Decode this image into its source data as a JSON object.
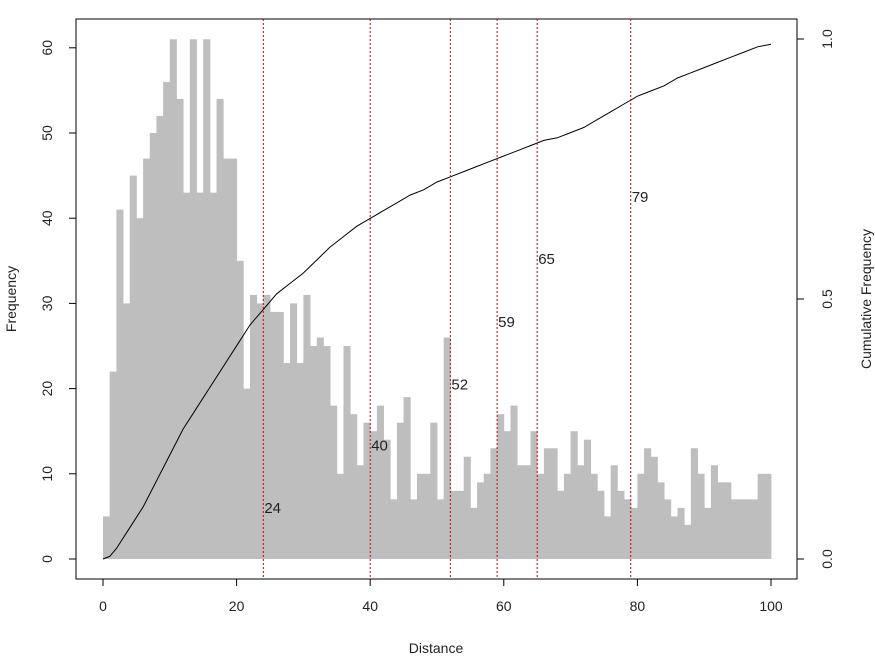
{
  "chart_data": {
    "type": "bar",
    "title": "",
    "xlabel": "Distance",
    "ylabel": "Frequency",
    "y2label": "Cumulative Frequency",
    "xlim": [
      0,
      100
    ],
    "ylim": [
      0,
      64
    ],
    "y2lim": [
      0,
      1.0
    ],
    "x_ticks": [
      0,
      20,
      40,
      60,
      80,
      100
    ],
    "y_ticks": [
      0,
      10,
      20,
      30,
      40,
      50,
      60
    ],
    "y2_ticks": [
      "0.0",
      "0.5",
      "1.0"
    ],
    "y2_tick_values": [
      0,
      0.5,
      1.0
    ],
    "bin_width": 1,
    "bins_start": 0,
    "frequencies": [
      5,
      22,
      41,
      30,
      45,
      40,
      47,
      50,
      52,
      56,
      61,
      54,
      43,
      61,
      43,
      61,
      43,
      54,
      47,
      47,
      35,
      20,
      31,
      30,
      31,
      29,
      29,
      23,
      30,
      23,
      31,
      25,
      26,
      25,
      18,
      10,
      25,
      17,
      11,
      16,
      15,
      18,
      14,
      7,
      16,
      19,
      7,
      10,
      10,
      16,
      7,
      26,
      8,
      8,
      12,
      6,
      9,
      10,
      13,
      17,
      15,
      18,
      11,
      11,
      15,
      10,
      13,
      13,
      8,
      10,
      15,
      11,
      14,
      10,
      8,
      5,
      11,
      8,
      7,
      6,
      10,
      13,
      12,
      9,
      7,
      5,
      6,
      4,
      13,
      10,
      6,
      11,
      9,
      9,
      7,
      7,
      7,
      7,
      10,
      10
    ],
    "bar_color": "#bebebe",
    "cumulative_curve": {
      "color": "#000000",
      "x": [
        0,
        1,
        2,
        4,
        6,
        8,
        10,
        12,
        14,
        16,
        18,
        20,
        22,
        24,
        26,
        28,
        30,
        32,
        34,
        36,
        38,
        40,
        42,
        44,
        46,
        48,
        50,
        52,
        54,
        56,
        58,
        60,
        62,
        64,
        66,
        68,
        70,
        72,
        74,
        76,
        78,
        80,
        82,
        84,
        86,
        88,
        90,
        92,
        94,
        96,
        98,
        100
      ],
      "y": [
        0,
        0.005,
        0.02,
        0.06,
        0.1,
        0.15,
        0.2,
        0.25,
        0.29,
        0.33,
        0.37,
        0.41,
        0.45,
        0.48,
        0.51,
        0.53,
        0.55,
        0.575,
        0.6,
        0.62,
        0.64,
        0.655,
        0.67,
        0.685,
        0.7,
        0.71,
        0.725,
        0.735,
        0.745,
        0.755,
        0.765,
        0.775,
        0.785,
        0.795,
        0.805,
        0.81,
        0.82,
        0.83,
        0.845,
        0.86,
        0.875,
        0.89,
        0.9,
        0.91,
        0.925,
        0.935,
        0.945,
        0.955,
        0.965,
        0.975,
        0.985,
        0.99
      ]
    },
    "reference_lines": [
      {
        "x": 24,
        "label": "24",
        "label_y": 6
      },
      {
        "x": 40,
        "label": "40",
        "label_y": 13.3
      },
      {
        "x": 52,
        "label": "52",
        "label_y": 20.5
      },
      {
        "x": 59,
        "label": "59",
        "label_y": 27.8
      },
      {
        "x": 65,
        "label": "65",
        "label_y": 35.2
      },
      {
        "x": 79,
        "label": "79",
        "label_y": 42.5
      }
    ],
    "reference_line_color": "#cc0000",
    "grid": false,
    "legend": "none"
  }
}
